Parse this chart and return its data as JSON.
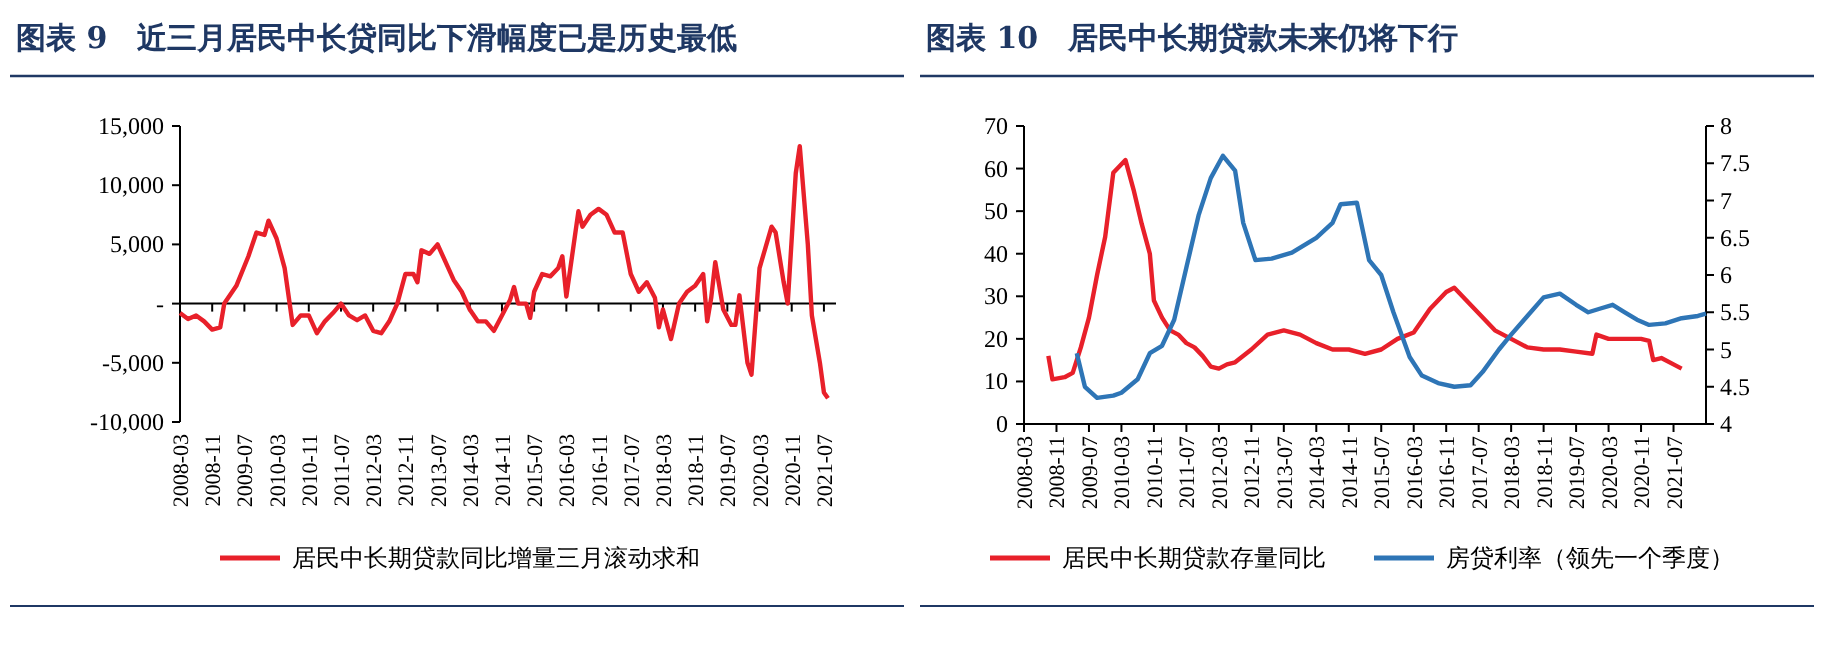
{
  "chart_data": [
    {
      "type": "line",
      "title": "图表 9　近三月居民中长贷同比下滑幅度已是历史最低",
      "legend": "bottom",
      "xlim": [
        "2008-03",
        "2021-10"
      ],
      "xticks": [
        "2008-03",
        "2008-11",
        "2009-07",
        "2010-03",
        "2010-11",
        "2011-07",
        "2012-03",
        "2012-11",
        "2013-07",
        "2014-03",
        "2014-11",
        "2015-07",
        "2016-03",
        "2016-11",
        "2017-07",
        "2018-03",
        "2018-11",
        "2019-07",
        "2020-03",
        "2020-11",
        "2021-07"
      ],
      "ylim": [
        -10000,
        15000
      ],
      "yticks": [
        {
          "value": -10000,
          "label": "-10,000"
        },
        {
          "value": -5000,
          "label": "-5,000"
        },
        {
          "value": 0,
          "label": "-"
        },
        {
          "value": 5000,
          "label": "5,000"
        },
        {
          "value": 10000,
          "label": "10,000"
        },
        {
          "value": 15000,
          "label": "15,000"
        }
      ],
      "series": [
        {
          "name": "居民中长期贷款同比增量三月滚动求和",
          "color": "#e8202a",
          "x": [
            "2008-03",
            "2008-05",
            "2008-07",
            "2008-09",
            "2008-11",
            "2009-01",
            "2009-02",
            "2009-05",
            "2009-08",
            "2009-10",
            "2009-12",
            "2010-01",
            "2010-03",
            "2010-05",
            "2010-07",
            "2010-09",
            "2010-11",
            "2011-01",
            "2011-03",
            "2011-05",
            "2011-07",
            "2011-09",
            "2011-11",
            "2012-01",
            "2012-03",
            "2012-05",
            "2012-07",
            "2012-09",
            "2012-11",
            "2013-01",
            "2013-02",
            "2013-03",
            "2013-05",
            "2013-07",
            "2013-09",
            "2013-11",
            "2014-01",
            "2014-03",
            "2014-05",
            "2014-07",
            "2014-09",
            "2014-11",
            "2015-01",
            "2015-02",
            "2015-03",
            "2015-05",
            "2015-06",
            "2015-07",
            "2015-09",
            "2015-11",
            "2016-01",
            "2016-02",
            "2016-03",
            "2016-04",
            "2016-06",
            "2016-07",
            "2016-09",
            "2016-11",
            "2017-01",
            "2017-03",
            "2017-05",
            "2017-07",
            "2017-09",
            "2017-11",
            "2018-01",
            "2018-02",
            "2018-03",
            "2018-05",
            "2018-07",
            "2018-09",
            "2018-11",
            "2019-01",
            "2019-02",
            "2019-03",
            "2019-04",
            "2019-06",
            "2019-08",
            "2019-09",
            "2019-10",
            "2019-12",
            "2020-01",
            "2020-03",
            "2020-06",
            "2020-07",
            "2020-09",
            "2020-10",
            "2020-12",
            "2021-01",
            "2021-03",
            "2021-04",
            "2021-06",
            "2021-07",
            "2021-08"
          ],
          "values": [
            -800,
            -1300,
            -1000,
            -1500,
            -2200,
            -2000,
            0,
            1500,
            4000,
            6000,
            5800,
            7000,
            5500,
            3000,
            -1800,
            -1000,
            -1000,
            -2500,
            -1500,
            -800,
            0,
            -1000,
            -1400,
            -1000,
            -2300,
            -2500,
            -1500,
            0,
            2500,
            2500,
            1800,
            4500,
            4200,
            5000,
            3500,
            2000,
            1000,
            -500,
            -1500,
            -1500,
            -2300,
            -1000,
            300,
            1400,
            0,
            0,
            -1200,
            1000,
            2500,
            2300,
            3000,
            4000,
            600,
            3000,
            7800,
            6500,
            7500,
            8000,
            7500,
            6000,
            6000,
            2500,
            1000,
            1800,
            500,
            -2000,
            -500,
            -3000,
            0,
            1000,
            1500,
            2500,
            -1500,
            500,
            3500,
            -500,
            -1800,
            -1800,
            700,
            -5000,
            -6000,
            3000,
            6500,
            6000,
            1800,
            0,
            11000,
            13300,
            5000,
            -1000,
            -5000,
            -7500,
            -8000
          ]
        }
      ]
    },
    {
      "type": "line",
      "title": "图表 10　居民中长期贷款未来仍将下行",
      "legend": "bottom",
      "xlim": [
        "2008-03",
        "2022-03"
      ],
      "xticks": [
        "2008-03",
        "2008-11",
        "2009-07",
        "2010-03",
        "2010-11",
        "2011-07",
        "2012-03",
        "2012-11",
        "2013-07",
        "2014-03",
        "2014-11",
        "2015-07",
        "2016-03",
        "2016-11",
        "2017-07",
        "2018-03",
        "2018-11",
        "2019-07",
        "2020-03",
        "2020-11",
        "2021-07"
      ],
      "ylim": [
        0,
        70
      ],
      "yticks": [
        0,
        10,
        20,
        30,
        40,
        50,
        60,
        70
      ],
      "y2lim": [
        4,
        8
      ],
      "y2ticks": [
        4,
        4.5,
        5,
        5.5,
        6,
        6.5,
        7,
        7.5,
        8
      ],
      "series": [
        {
          "name": "居民中长期贷款存量同比",
          "color": "#e8202a",
          "x": [
            "2008-09",
            "2008-10",
            "2009-01",
            "2009-03",
            "2009-05",
            "2009-07",
            "2009-09",
            "2009-11",
            "2010-01",
            "2010-03",
            "2010-04",
            "2010-06",
            "2010-08",
            "2010-10",
            "2010-11",
            "2011-01",
            "2011-03",
            "2011-05",
            "2011-07",
            "2011-09",
            "2011-11",
            "2012-01",
            "2012-03",
            "2012-05",
            "2012-07",
            "2012-11",
            "2013-03",
            "2013-07",
            "2013-11",
            "2014-03",
            "2014-07",
            "2014-11",
            "2015-03",
            "2015-07",
            "2015-11",
            "2016-03",
            "2016-07",
            "2016-11",
            "2017-01",
            "2017-03",
            "2017-07",
            "2017-11",
            "2018-03",
            "2018-07",
            "2018-11",
            "2019-03",
            "2019-07",
            "2019-11",
            "2019-12",
            "2020-03",
            "2020-07",
            "2020-11",
            "2021-01",
            "2021-02",
            "2021-04",
            "2021-07",
            "2021-09"
          ],
          "values": [
            16,
            10.5,
            11,
            12,
            18,
            25,
            35,
            44,
            59,
            61,
            62,
            55,
            47,
            40,
            29,
            25,
            22,
            21,
            19,
            18,
            16,
            13.5,
            13,
            14,
            14.5,
            17.5,
            21,
            22,
            21,
            19,
            17.5,
            17.5,
            16.5,
            17.5,
            20,
            21.5,
            27,
            31,
            32,
            30,
            26,
            22,
            20,
            18,
            17.5,
            17.5,
            17,
            16.5,
            21,
            20,
            20,
            20,
            19.5,
            15,
            15.5,
            14,
            13
          ]
        },
        {
          "name": "房贷利率（领先一个季度）",
          "color": "#2e75b6",
          "axis": "y2",
          "x": [
            "2009-04",
            "2009-06",
            "2009-09",
            "2010-01",
            "2010-03",
            "2010-07",
            "2010-10",
            "2011-01",
            "2011-04",
            "2011-07",
            "2011-10",
            "2012-01",
            "2012-04",
            "2012-07",
            "2012-09",
            "2012-12",
            "2013-04",
            "2013-09",
            "2014-03",
            "2014-07",
            "2014-09",
            "2015-01",
            "2015-04",
            "2015-07",
            "2015-10",
            "2016-02",
            "2016-05",
            "2016-09",
            "2017-01",
            "2017-05",
            "2017-08",
            "2017-12",
            "2018-03",
            "2018-07",
            "2018-11",
            "2019-03",
            "2019-07",
            "2019-10",
            "2020-01",
            "2020-04",
            "2020-07",
            "2020-10",
            "2021-01",
            "2021-05",
            "2021-09",
            "2022-01",
            "2022-03"
          ],
          "values": [
            4.95,
            4.5,
            4.35,
            4.38,
            4.42,
            4.6,
            4.95,
            5.05,
            5.4,
            6.1,
            6.8,
            7.3,
            7.6,
            7.4,
            6.7,
            6.2,
            6.22,
            6.3,
            6.5,
            6.7,
            6.95,
            6.97,
            6.2,
            6,
            5.5,
            4.9,
            4.65,
            4.55,
            4.5,
            4.52,
            4.7,
            5,
            5.2,
            5.45,
            5.7,
            5.75,
            5.6,
            5.5,
            5.55,
            5.6,
            5.5,
            5.4,
            5.33,
            5.35,
            5.42,
            5.45,
            5.48
          ]
        }
      ]
    }
  ]
}
